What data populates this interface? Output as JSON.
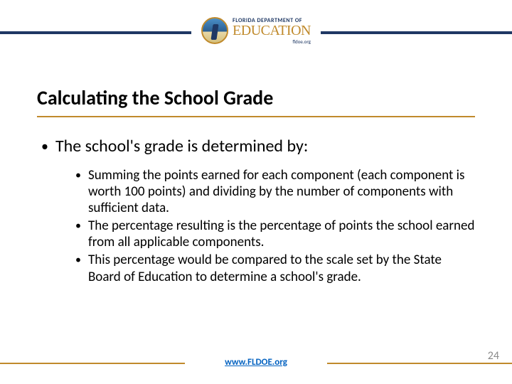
{
  "colors": {
    "navy": "#1f3864",
    "gold": "#c08a2c",
    "link": "#0563c1",
    "page_num": "#8a8a8a",
    "text": "#000000",
    "background": "#ffffff"
  },
  "logo": {
    "super": "FLORIDA DEPARTMENT OF",
    "main": "EDUCATION",
    "sub": "fldoe.org"
  },
  "slide": {
    "title": "Calculating the School Grade",
    "level1": "The school's grade is determined by:",
    "level2": [
      "Summing the points earned for each component (each component is worth 100 points) and dividing by the number of components with sufficient data.",
      "The percentage resulting is the percentage of points the school earned from all applicable components.",
      "This percentage would be compared to the scale set by the State Board of Education to determine a school's grade."
    ]
  },
  "footer": {
    "link": "www.FLDOE.org",
    "page": "24"
  },
  "typography": {
    "title_fontsize": 28,
    "level1_fontsize": 24,
    "level2_fontsize": 19,
    "footer_fontsize": 13,
    "pagenum_fontsize": 16
  }
}
